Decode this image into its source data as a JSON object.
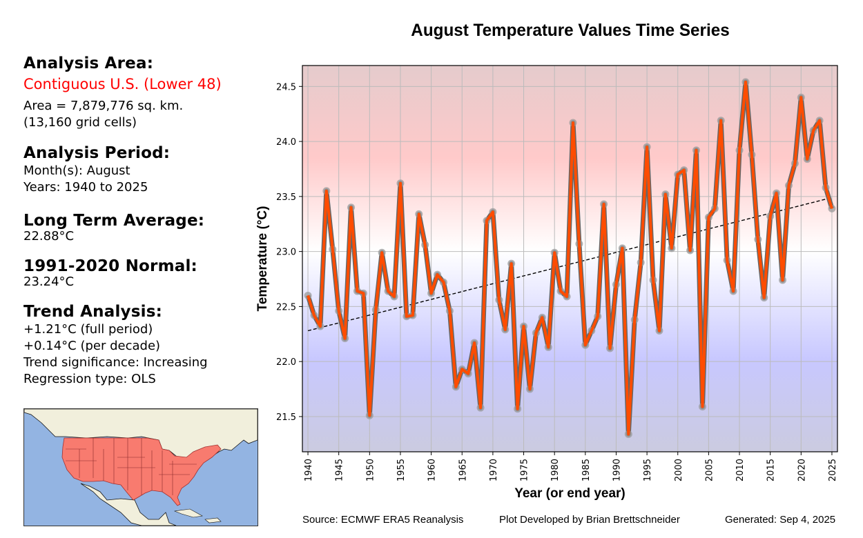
{
  "panel": {
    "area_heading": "Analysis Area:",
    "area_name": "Contiguous U.S. (Lower 48)",
    "area_size": "Area = 7,879,776 sq. km.",
    "area_cells": "(13,160 grid cells)",
    "period_heading": "Analysis Period:",
    "period_months": "Month(s): August",
    "period_years": "Years: 1940 to 2025",
    "lta_heading": "Long Term Average:",
    "lta_value": "22.88°C",
    "normal_heading": "1991-2020 Normal:",
    "normal_value": "23.24°C",
    "trend_heading": "Trend Analysis:",
    "trend_full": "+1.21°C (full period)",
    "trend_decade": "+0.14°C (per decade)",
    "trend_significance": "Trend significance: Increasing",
    "regression_type": "Regression type: OLS"
  },
  "map": {
    "label": "Contiguous U.S. highlighted map",
    "highlight_color": "#f87b6f",
    "ocean_color": "#93b4e2",
    "land_color": "#f1efdc"
  },
  "footer": {
    "source": "Source: ECMWF ERA5 Reanalysis",
    "credit": "Plot Developed by Brian Brettschneider",
    "generated": "Generated: Sep 4, 2025"
  },
  "colors": {
    "line": "#ff4c00",
    "line_edge": "#666666",
    "marker": "#999999",
    "trend": "#000000",
    "grid": "#bbbbbb"
  },
  "chart_data": {
    "type": "line",
    "title": "August Temperature Values Time Series",
    "xlabel": "Year (or end year)",
    "ylabel": "Temperature (°C)",
    "xlim": [
      1939.1,
      2025.9
    ],
    "ylim": [
      21.18,
      24.69
    ],
    "xticks": [
      1940,
      1945,
      1950,
      1955,
      1960,
      1965,
      1970,
      1975,
      1980,
      1985,
      1990,
      1995,
      2000,
      2005,
      2010,
      2015,
      2020,
      2025
    ],
    "yticks": [
      21.5,
      22.0,
      22.5,
      23.0,
      23.5,
      24.0,
      24.5
    ],
    "ytick_labels": [
      "21.5",
      "22.0",
      "22.5",
      "23.0",
      "23.5",
      "24.0",
      "24.5"
    ],
    "grid": true,
    "background_gradient": "red above ~23.0°C, blue below",
    "x": [
      1940,
      1941,
      1942,
      1943,
      1944,
      1945,
      1946,
      1947,
      1948,
      1949,
      1950,
      1951,
      1952,
      1953,
      1954,
      1955,
      1956,
      1957,
      1958,
      1959,
      1960,
      1961,
      1962,
      1963,
      1964,
      1965,
      1966,
      1967,
      1968,
      1969,
      1970,
      1971,
      1972,
      1973,
      1974,
      1975,
      1976,
      1977,
      1978,
      1979,
      1980,
      1981,
      1982,
      1983,
      1984,
      1985,
      1986,
      1987,
      1988,
      1989,
      1990,
      1991,
      1992,
      1993,
      1994,
      1995,
      1996,
      1997,
      1998,
      1999,
      2000,
      2001,
      2002,
      2003,
      2004,
      2005,
      2006,
      2007,
      2008,
      2009,
      2010,
      2011,
      2012,
      2013,
      2014,
      2015,
      2016,
      2017,
      2018,
      2019,
      2020,
      2021,
      2022,
      2023,
      2024,
      2025
    ],
    "series": [
      {
        "name": "August Temperature",
        "values": [
          22.6,
          22.42,
          22.32,
          23.55,
          23.02,
          22.46,
          22.21,
          23.4,
          22.64,
          22.62,
          21.51,
          22.47,
          22.99,
          22.64,
          22.59,
          23.62,
          22.41,
          22.42,
          23.34,
          23.06,
          22.62,
          22.79,
          22.72,
          22.46,
          21.77,
          21.93,
          21.89,
          22.17,
          21.58,
          23.28,
          23.36,
          22.56,
          22.29,
          22.89,
          21.57,
          22.32,
          21.75,
          22.26,
          22.4,
          22.13,
          22.99,
          22.64,
          22.59,
          24.17,
          23.07,
          22.15,
          22.28,
          22.41,
          23.43,
          22.12,
          22.7,
          23.03,
          21.34,
          22.38,
          22.9,
          23.95,
          22.74,
          22.28,
          23.52,
          23.03,
          23.7,
          23.74,
          23.01,
          23.92,
          21.59,
          23.31,
          23.39,
          24.19,
          22.92,
          22.64,
          23.92,
          24.54,
          23.88,
          23.11,
          22.58,
          23.32,
          23.53,
          22.74,
          23.6,
          23.8,
          24.4,
          23.84,
          24.1,
          24.19,
          23.58,
          23.39
        ]
      }
    ],
    "trend_line": {
      "x": [
        1940,
        2025
      ],
      "y": [
        22.28,
        23.49
      ],
      "style": "dashed"
    }
  }
}
